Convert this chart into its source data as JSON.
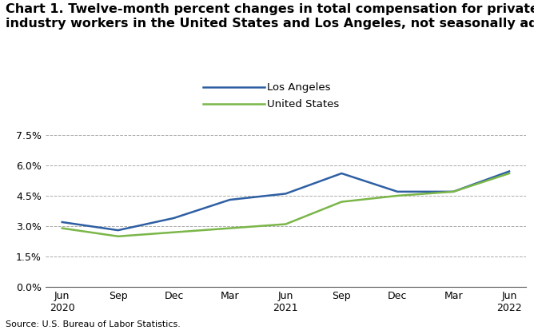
{
  "title_line1": "Chart 1. Twelve-month percent changes in total compensation for private",
  "title_line2": "industry workers in the United States and Los Angeles, not seasonally adjusted",
  "x_labels": [
    "Jun\n2020",
    "Sep",
    "Dec",
    "Mar",
    "Jun\n2021",
    "Sep",
    "Dec",
    "Mar",
    "Jun\n2022"
  ],
  "los_angeles": [
    3.2,
    2.8,
    3.4,
    4.3,
    4.6,
    5.6,
    4.7,
    4.7,
    5.7
  ],
  "united_states": [
    2.9,
    2.5,
    2.7,
    2.9,
    3.1,
    4.2,
    4.5,
    4.7,
    5.6
  ],
  "la_color": "#2E5FA3",
  "us_color": "#7AB648",
  "yticks": [
    0.0,
    1.5,
    3.0,
    4.5,
    6.0,
    7.5
  ],
  "ylim": [
    0.0,
    7.8
  ],
  "source": "Source: U.S. Bureau of Labor Statistics.",
  "legend_la": "Los Angeles",
  "legend_us": "United States",
  "line_width": 1.8,
  "title_fontsize": 11.5,
  "tick_fontsize": 9,
  "source_fontsize": 8
}
